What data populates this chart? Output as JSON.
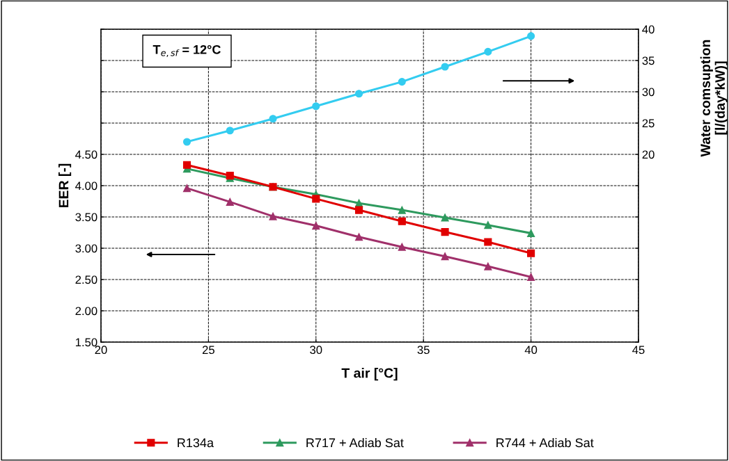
{
  "chart_data": {
    "type": "line",
    "xlabel": "T air [°C]",
    "ylabel": "EER [-]",
    "y2label": "Water comsuption\n[l/(day*kW)]",
    "x": [
      24,
      26,
      28,
      30,
      32,
      34,
      36,
      38,
      40
    ],
    "series": [
      {
        "name": "R134a",
        "color": "#e00000",
        "marker": "square",
        "values": [
          4.33,
          4.16,
          3.98,
          3.79,
          3.61,
          3.43,
          3.26,
          3.1,
          2.92
        ]
      },
      {
        "name": "R717 + Adiab Sat",
        "color": "#2e9a5e",
        "marker": "triangle",
        "values": [
          4.27,
          4.12,
          3.98,
          3.86,
          3.72,
          3.61,
          3.49,
          3.37,
          3.24
        ]
      },
      {
        "name": "R744 + Adiab Sat",
        "color": "#a0306a",
        "marker": "triangle",
        "values": [
          3.96,
          3.74,
          3.51,
          3.36,
          3.18,
          3.02,
          2.87,
          2.71,
          2.54
        ]
      },
      {
        "color": "#33ccf0",
        "marker": "circle",
        "axis": "y2",
        "values": [
          22.0,
          23.8,
          25.7,
          27.7,
          29.7,
          31.6,
          34.0,
          36.4,
          38.9
        ]
      }
    ],
    "xlim": [
      20,
      45
    ],
    "xticks": [
      20,
      25,
      30,
      35,
      40,
      45
    ],
    "ylim": [
      1.5,
      6.5
    ],
    "yticks": [
      {
        "value": 1.5,
        "label": "1.50"
      },
      {
        "value": 2.0,
        "label": "2.00"
      },
      {
        "value": 2.5,
        "label": "2.50"
      },
      {
        "value": 3.0,
        "label": "3.00"
      },
      {
        "value": 3.5,
        "label": "3.50"
      },
      {
        "value": 4.0,
        "label": "4.00"
      },
      {
        "value": 4.5,
        "label": "4.50"
      },
      {
        "value": 5.0,
        "label": null
      },
      {
        "value": 5.5,
        "label": null
      },
      {
        "value": 6.0,
        "label": null
      },
      {
        "value": 6.5,
        "label": null
      }
    ],
    "y2lim": [
      -10,
      40
    ],
    "y2ticks": [
      {
        "value": -10,
        "label": null
      },
      {
        "value": -5,
        "label": null
      },
      {
        "value": 0,
        "label": null
      },
      {
        "value": 5,
        "label": null
      },
      {
        "value": 10,
        "label": null
      },
      {
        "value": 15,
        "label": null
      },
      20,
      25,
      30,
      35,
      40
    ],
    "annotations": [
      "T$_{e,sf}$ = 12°C"
    ],
    "grid": true,
    "line_style": "solid",
    "legend": "bottom"
  }
}
